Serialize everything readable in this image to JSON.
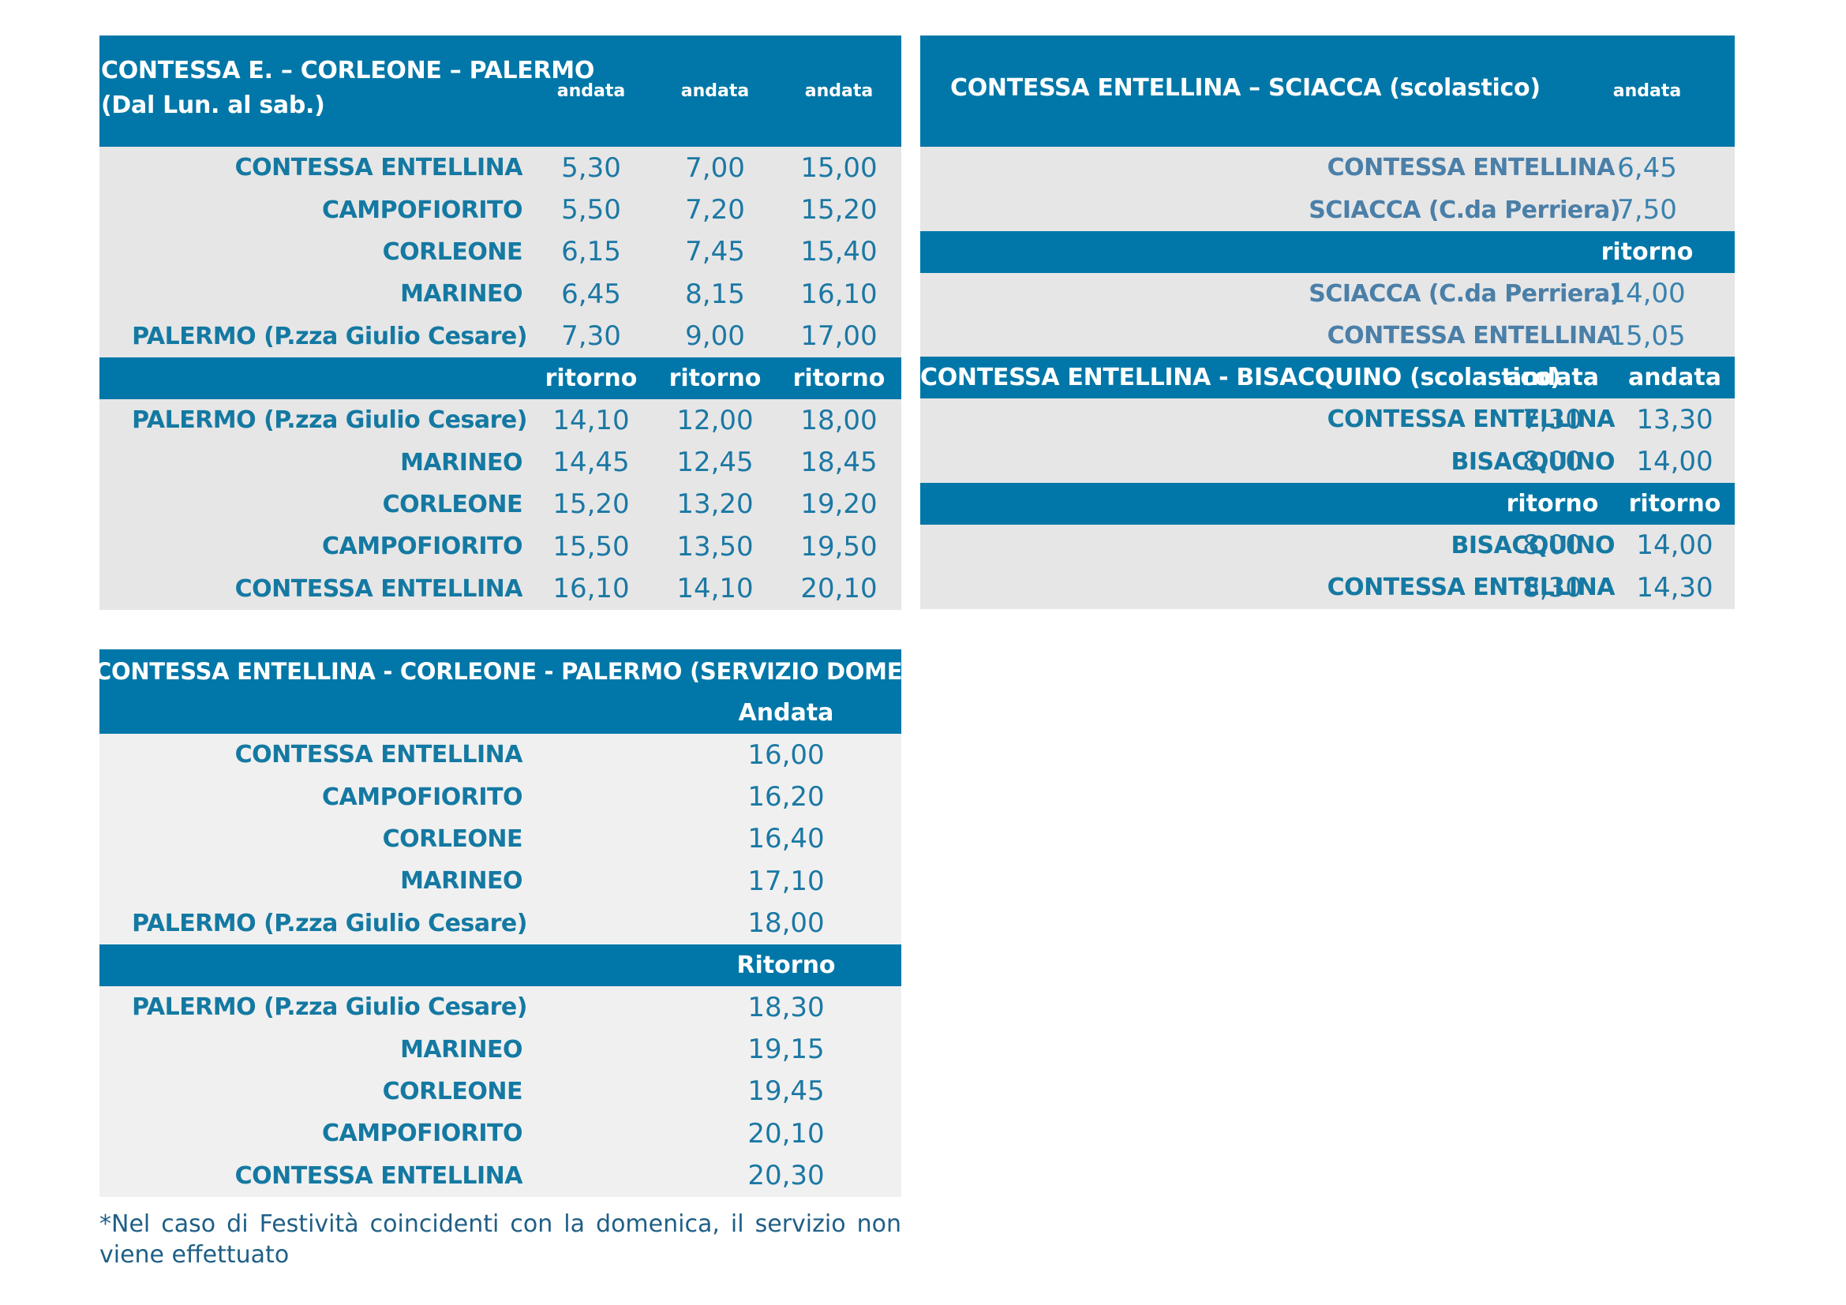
{
  "t1": {
    "title_line1": "CONTESSA E. – CORLEONE – PALERMO",
    "title_line2": "(Dal Lun. al sab.)",
    "cols": [
      "andata",
      "andata",
      "andata"
    ],
    "outbound": [
      {
        "stop": "CONTESSA ENTELLINA",
        "times": [
          "5,30",
          "7,00",
          "15,00"
        ]
      },
      {
        "stop": "CAMPOFIORITO",
        "times": [
          "5,50",
          "7,20",
          "15,20"
        ]
      },
      {
        "stop": "CORLEONE",
        "times": [
          "6,15",
          "7,45",
          "15,40"
        ]
      },
      {
        "stop": "MARINEO",
        "times": [
          "6,45",
          "8,15",
          "16,10"
        ]
      },
      {
        "stop": "PALERMO (P.zza Giulio Cesare)",
        "times": [
          "7,30",
          "9,00",
          "17,00"
        ]
      }
    ],
    "return_cols": [
      "ritorno",
      "ritorno",
      "ritorno"
    ],
    "inbound": [
      {
        "stop": "PALERMO (P.zza Giulio Cesare)",
        "times": [
          "14,10",
          "12,00",
          "18,00"
        ]
      },
      {
        "stop": "MARINEO",
        "times": [
          "14,45",
          "12,45",
          "18,45"
        ]
      },
      {
        "stop": "CORLEONE",
        "times": [
          "15,20",
          "13,20",
          "19,20"
        ]
      },
      {
        "stop": "CAMPOFIORITO",
        "times": [
          "15,50",
          "13,50",
          "19,50"
        ]
      },
      {
        "stop": "CONTESSA ENTELLINA",
        "times": [
          "16,10",
          "14,10",
          "20,10"
        ]
      }
    ]
  },
  "t2": {
    "title": "CONTESSA ENTELLINA – SCIACCA (scolastico)",
    "col": "andata",
    "outbound": [
      {
        "stop": "CONTESSA ENTELLINA",
        "time": "6,45"
      },
      {
        "stop": "SCIACCA (C.da Perriera)",
        "time": "7,50"
      }
    ],
    "return_col": "ritorno",
    "inbound": [
      {
        "stop": "SCIACCA (C.da Perriera)",
        "time": "14,00"
      },
      {
        "stop": "CONTESSA ENTELLINA",
        "time": "15,05"
      }
    ]
  },
  "t3": {
    "title": "CONTESSA ENTELLINA - BISACQUINO (scolastico)",
    "cols": [
      "andata",
      "andata"
    ],
    "outbound": [
      {
        "stop": "CONTESSA ENTELLINA",
        "times": [
          "7,30",
          "13,30"
        ]
      },
      {
        "stop": "BISACQUINO",
        "times": [
          "8,00",
          "14,00"
        ]
      }
    ],
    "return_cols": [
      "ritorno",
      "ritorno"
    ],
    "inbound": [
      {
        "stop": "BISACQUINO",
        "times": [
          "8,00",
          "14,00"
        ]
      },
      {
        "stop": "CONTESSA ENTELLINA",
        "times": [
          "8,30",
          "14,30"
        ]
      }
    ]
  },
  "t4": {
    "title": "CONTESSA ENTELLINA - CORLEONE - PALERMO (SERVIZIO DOMENICALE*)",
    "col": "Andata",
    "outbound": [
      {
        "stop": "CONTESSA ENTELLINA",
        "time": "16,00"
      },
      {
        "stop": "CAMPOFIORITO",
        "time": "16,20"
      },
      {
        "stop": "CORLEONE",
        "time": "16,40"
      },
      {
        "stop": "MARINEO",
        "time": "17,10"
      },
      {
        "stop": "PALERMO (P.zza Giulio Cesare)",
        "time": "18,00"
      }
    ],
    "return_col": "Ritorno",
    "inbound": [
      {
        "stop": "PALERMO (P.zza Giulio Cesare)",
        "time": "18,30"
      },
      {
        "stop": "MARINEO",
        "time": "19,15"
      },
      {
        "stop": "CORLEONE",
        "time": "19,45"
      },
      {
        "stop": "CAMPOFIORITO",
        "time": "20,10"
      },
      {
        "stop": "CONTESSA ENTELLINA",
        "time": "20,30"
      }
    ]
  },
  "note": "*Nel caso di Festività coincidenti con la domenica, il servizio non viene effettuato"
}
